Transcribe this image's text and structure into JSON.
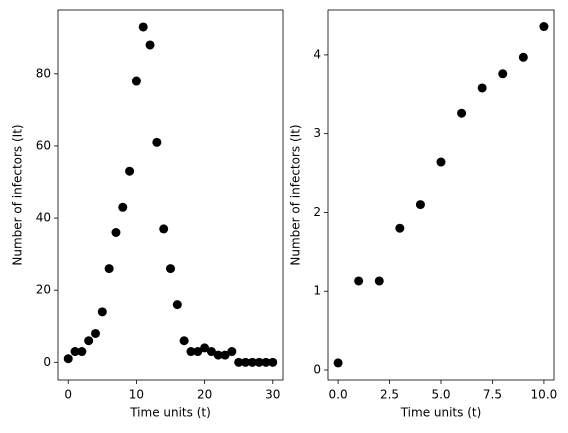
{
  "chart_data": [
    {
      "type": "scatter",
      "xlabel": "Time units (t)",
      "ylabel": "Number of infectors (It)",
      "color": "#000000",
      "x": [
        0,
        1,
        2,
        3,
        4,
        5,
        6,
        7,
        8,
        9,
        10,
        11,
        12,
        13,
        14,
        15,
        16,
        17,
        18,
        19,
        20,
        21,
        22,
        23,
        24,
        25,
        26,
        27,
        28,
        29,
        30
      ],
      "values": [
        1,
        3,
        3,
        6,
        8,
        14,
        26,
        36,
        43,
        53,
        78,
        93,
        88,
        61,
        37,
        26,
        16,
        6,
        3,
        3,
        4,
        3,
        2,
        2,
        3,
        0,
        0,
        0,
        0,
        0,
        0
      ],
      "xlim": [
        -1.5,
        31.5
      ],
      "ylim": [
        -4.9,
        97.7
      ],
      "xticks": [
        0,
        10,
        20,
        30
      ],
      "yticks": [
        0,
        20,
        40,
        60,
        80
      ]
    },
    {
      "type": "scatter",
      "xlabel": "Time units (t)",
      "ylabel": "Number of infectors (It)",
      "color": "#000000",
      "x": [
        0,
        1,
        2,
        3,
        4,
        5,
        6,
        7,
        8,
        9,
        10
      ],
      "values": [
        0.09,
        1.13,
        1.13,
        1.8,
        2.1,
        2.64,
        3.26,
        3.58,
        3.76,
        3.97,
        4.36
      ],
      "xlim": [
        -0.49,
        10.49
      ],
      "ylim": [
        -0.127,
        4.57
      ],
      "xticks": [
        {
          "value": 0,
          "label": "0.0"
        },
        {
          "value": 2.5,
          "label": "2.5"
        },
        {
          "value": 5,
          "label": "5.0"
        },
        {
          "value": 7.5,
          "label": "7.5"
        },
        {
          "value": 10,
          "label": "10.0"
        }
      ],
      "yticks": [
        0,
        1,
        2,
        3,
        4
      ]
    }
  ]
}
